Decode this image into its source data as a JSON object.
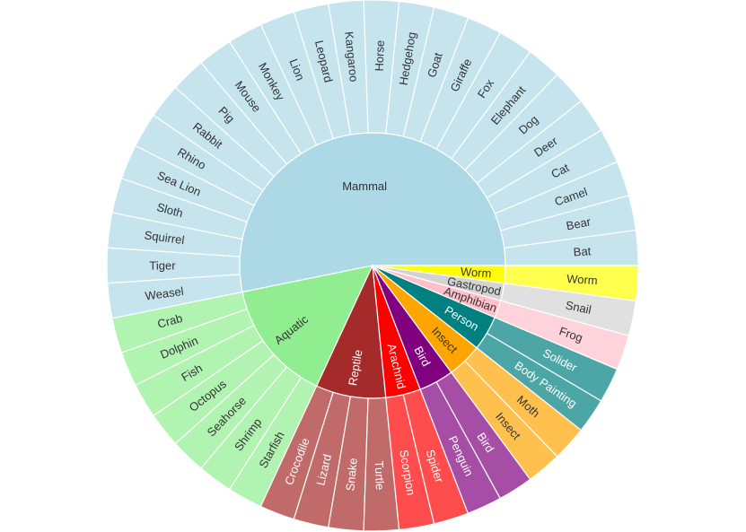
{
  "chart_data": {
    "type": "sunburst",
    "title": "",
    "categories": [
      {
        "name": "Mammal",
        "color": "#add8e6",
        "outer_color": "#c5e4ee",
        "inner_text": "#333333",
        "outer_text": "#333333",
        "children": [
          {
            "name": "Bat",
            "value": 1
          },
          {
            "name": "Bear",
            "value": 1
          },
          {
            "name": "Camel",
            "value": 1
          },
          {
            "name": "Cat",
            "value": 1
          },
          {
            "name": "Deer",
            "value": 1
          },
          {
            "name": "Dog",
            "value": 1
          },
          {
            "name": "Elephant",
            "value": 1
          },
          {
            "name": "Fox",
            "value": 1
          },
          {
            "name": "Giraffe",
            "value": 1
          },
          {
            "name": "Goat",
            "value": 1
          },
          {
            "name": "Hedgehog",
            "value": 1
          },
          {
            "name": "Horse",
            "value": 1
          },
          {
            "name": "Kangaroo",
            "value": 1
          },
          {
            "name": "Leopard",
            "value": 1
          },
          {
            "name": "Lion",
            "value": 1
          },
          {
            "name": "Monkey",
            "value": 1
          },
          {
            "name": "Mouse",
            "value": 1
          },
          {
            "name": "Pig",
            "value": 1
          },
          {
            "name": "Rabbit",
            "value": 1
          },
          {
            "name": "Rhino",
            "value": 1
          },
          {
            "name": "Sea Lion",
            "value": 1
          },
          {
            "name": "Sloth",
            "value": 1
          },
          {
            "name": "Squirrel",
            "value": 1
          },
          {
            "name": "Tiger",
            "value": 1
          },
          {
            "name": "Weasel",
            "value": 1
          }
        ]
      },
      {
        "name": "Aquatic",
        "color": "#90ee90",
        "outer_color": "#b1f3b1",
        "inner_text": "#333333",
        "outer_text": "#333333",
        "children": [
          {
            "name": "Crab",
            "value": 1
          },
          {
            "name": "Dolphin",
            "value": 1
          },
          {
            "name": "Fish",
            "value": 1
          },
          {
            "name": "Octopus",
            "value": 1
          },
          {
            "name": "Seahorse",
            "value": 1
          },
          {
            "name": "Shrimp",
            "value": 1
          },
          {
            "name": "Starfish",
            "value": 1
          }
        ]
      },
      {
        "name": "Reptile",
        "color": "#a52a2a",
        "outer_color": "#c06a6a",
        "inner_text": "#ffffff",
        "outer_text": "#ffffff",
        "children": [
          {
            "name": "Crocodile",
            "value": 1
          },
          {
            "name": "Lizard",
            "value": 1
          },
          {
            "name": "Snake",
            "value": 1
          },
          {
            "name": "Turtle",
            "value": 1
          }
        ]
      },
      {
        "name": "Arachnid",
        "color": "#ff0000",
        "outer_color": "#ff4d4d",
        "inner_text": "#ffffff",
        "outer_text": "#ffffff",
        "children": [
          {
            "name": "Scorpion",
            "value": 1
          },
          {
            "name": "Spider",
            "value": 1
          }
        ]
      },
      {
        "name": "Bird",
        "color": "#800080",
        "outer_color": "#a64da6",
        "inner_text": "#ffffff",
        "outer_text": "#ffffff",
        "children": [
          {
            "name": "Penguin",
            "value": 1
          },
          {
            "name": "Bird",
            "value": 1
          }
        ]
      },
      {
        "name": "Insect",
        "color": "#ffa500",
        "outer_color": "#ffc04d",
        "inner_text": "#333333",
        "outer_text": "#333333",
        "children": [
          {
            "name": "Insect",
            "value": 1
          },
          {
            "name": "Moth",
            "value": 1
          }
        ]
      },
      {
        "name": "Person",
        "color": "#008080",
        "outer_color": "#4da6a6",
        "inner_text": "#ffffff",
        "outer_text": "#ffffff",
        "children": [
          {
            "name": "Body Painting",
            "value": 1
          },
          {
            "name": "Solider",
            "value": 1
          }
        ]
      },
      {
        "name": "Amphibian",
        "color": "#ffc0cb",
        "outer_color": "#ffd3db",
        "inner_text": "#333333",
        "outer_text": "#333333",
        "children": [
          {
            "name": "Frog",
            "value": 1
          }
        ]
      },
      {
        "name": "Gastropod",
        "color": "#d3d3d3",
        "outer_color": "#e0e0e0",
        "inner_text": "#333333",
        "outer_text": "#333333",
        "children": [
          {
            "name": "Snail",
            "value": 1
          }
        ]
      },
      {
        "name": "Worm",
        "color": "#ffff00",
        "outer_color": "#ffff4d",
        "inner_text": "#333333",
        "outer_text": "#333333",
        "children": [
          {
            "name": "Worm",
            "value": 1
          }
        ]
      }
    ]
  }
}
